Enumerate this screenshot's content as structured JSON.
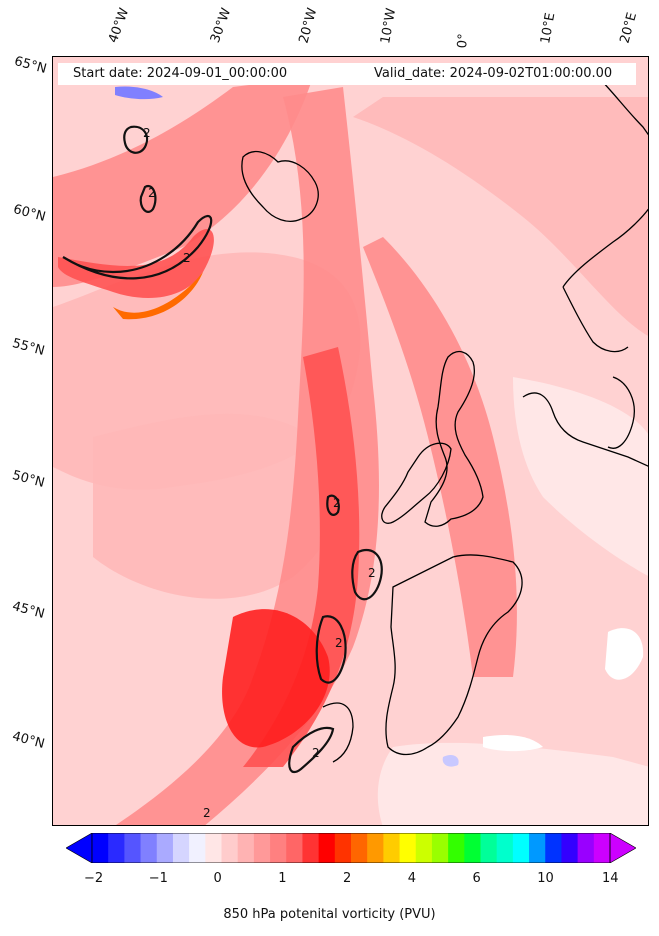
{
  "header": {
    "start_label": "Start date: 2024-09-01_00:00:00",
    "valid_label": "Valid_date: 2024-09-02T01:00:00.00"
  },
  "longitude_labels": [
    "40°W",
    "30°W",
    "20°W",
    "10°W",
    "0°",
    "10°E",
    "20°E"
  ],
  "latitude_labels": [
    "65°N",
    "60°N",
    "55°N",
    "50°N",
    "45°N",
    "40°N"
  ],
  "contour_label": "2",
  "colorbar": {
    "title": "850 hPa potenital vorticity (PVU)",
    "tick_labels": [
      "−2",
      "−1",
      "0",
      "1",
      "2",
      "4",
      "6",
      "10",
      "14"
    ],
    "colors": [
      "#0000ff",
      "#2a2aff",
      "#5555ff",
      "#8080ff",
      "#aaaaff",
      "#d5d5ff",
      "#f1f1ff",
      "#ffe6e6",
      "#ffcccc",
      "#ffb3b3",
      "#ff9999",
      "#ff8080",
      "#ff6666",
      "#ff3333",
      "#ff0000",
      "#ff3300",
      "#ff6600",
      "#ff9900",
      "#ffcc00",
      "#ffff00",
      "#ccff00",
      "#99ff00",
      "#33ff00",
      "#00ff33",
      "#00ff99",
      "#00ffcc",
      "#00ffff",
      "#0099ff",
      "#0033ff",
      "#3300ff",
      "#9900ff",
      "#cc00ff"
    ]
  },
  "palette": {
    "background": "#ffd2d2",
    "pale": "#ffe9e9",
    "light": "#ffb8b8",
    "medium": "#ff8c8c",
    "strong": "#ff5252",
    "intense": "#ff2020",
    "orange": "#ff6a00",
    "negative": "#c8c8ff",
    "coast": "#000000"
  }
}
